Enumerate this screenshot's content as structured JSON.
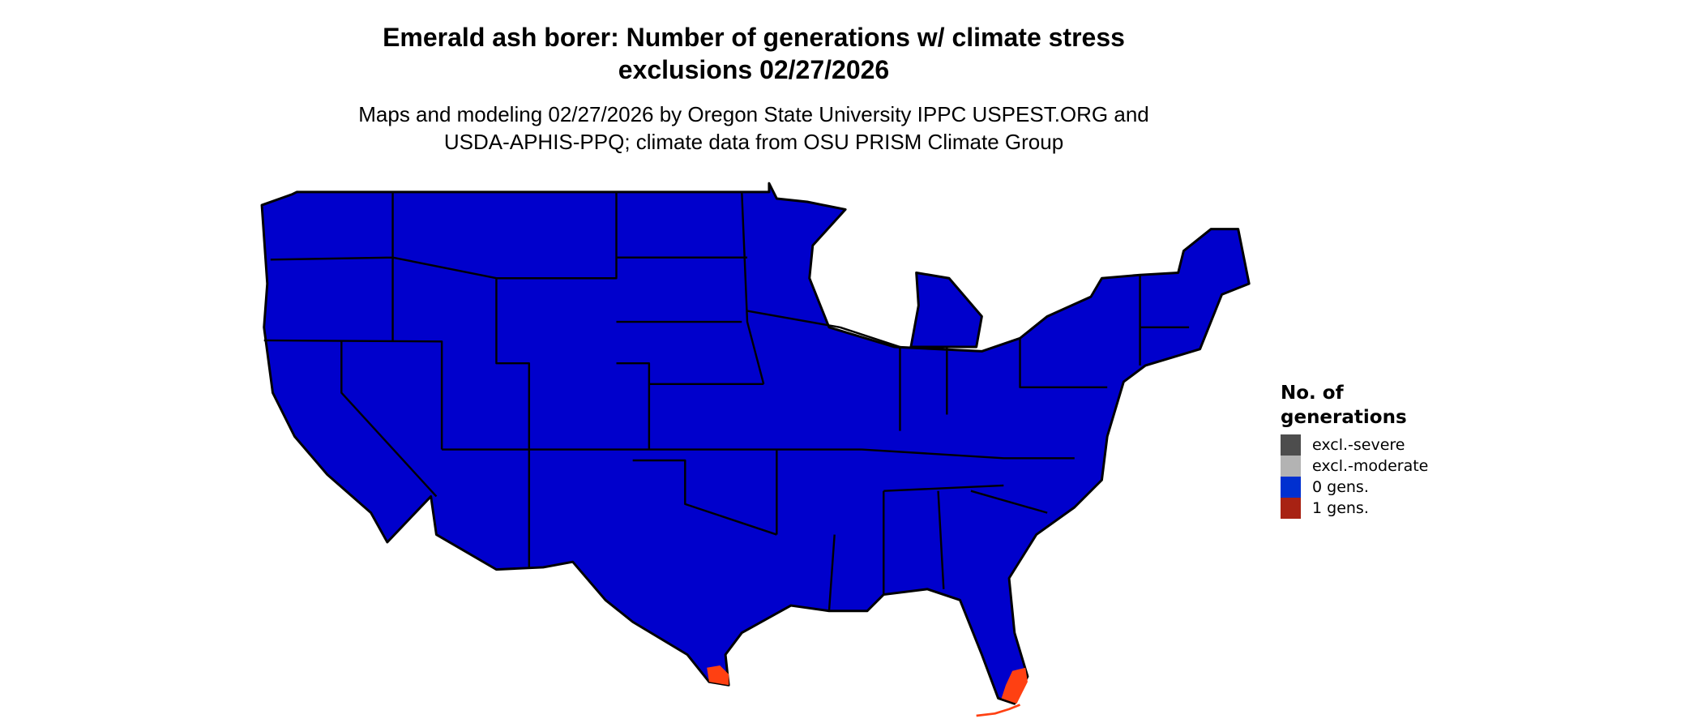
{
  "title": {
    "line1": "Emerald ash borer: Number of generations w/ climate stress",
    "line2": "exclusions 02/27/2026"
  },
  "subtitle": {
    "line1": "Maps and modeling 02/27/2026 by Oregon State University IPPC USPEST.ORG and",
    "line2": "USDA-APHIS-PPQ; climate data from OSU PRISM Climate Group"
  },
  "map": {
    "region": "Contiguous United States",
    "base_fill": "#0000CC",
    "one_gen_fill": "#FF4012",
    "border_color": "#000000",
    "one_gen_areas": [
      "South Texas",
      "South Florida"
    ]
  },
  "legend": {
    "title_line1": "No. of",
    "title_line2": "generations",
    "items": [
      {
        "label": "excl.-severe",
        "color": "#4D4D4D"
      },
      {
        "label": "excl.-moderate",
        "color": "#B3B3B3"
      },
      {
        "label": "0 gens.",
        "color": "#0030D0"
      },
      {
        "label": "1 gens.",
        "color": "#A82213"
      }
    ]
  }
}
